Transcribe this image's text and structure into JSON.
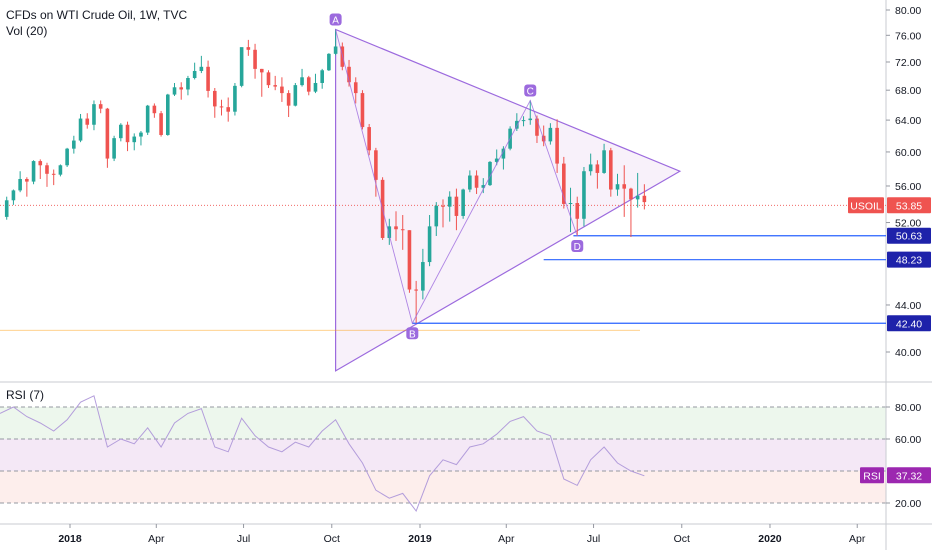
{
  "header": {
    "title": "CFDs on WTI Crude Oil, 1W, TVC",
    "volume_label": "Vol (20)"
  },
  "price_axis": {
    "ticks": [
      "80.00",
      "76.00",
      "72.00",
      "68.00",
      "64.00",
      "60.00",
      "56.00",
      "52.00",
      "44.00",
      "40.00"
    ]
  },
  "price_badges": {
    "symbol": "USOIL",
    "last": "53.85",
    "level_d1": "50.63",
    "level_d2": "48.23",
    "level_b": "42.40"
  },
  "pattern_labels": [
    "A",
    "B",
    "C",
    "D"
  ],
  "rsi": {
    "label": "RSI (7)",
    "badge_name": "RSI",
    "badge_value": "37.32",
    "ticks": [
      "80.00",
      "60.00",
      "20.00"
    ]
  },
  "time_axis": {
    "labels": [
      "2018",
      "Apr",
      "Jul",
      "Oct",
      "2019",
      "Apr",
      "Jul",
      "Oct",
      "2020",
      "Apr"
    ]
  },
  "colors": {
    "up": "#26a69a",
    "down": "#ef5350",
    "pattern": "#9c6ade",
    "level_line": "#2962ff",
    "rsi_line": "#b39ddb"
  },
  "chart_data": {
    "type": "candlestick",
    "title": "CFDs on WTI Crude Oil, 1W, TVC",
    "ylim": [
      38,
      82
    ],
    "x_range": [
      "2017-10-20",
      "2020-05-01"
    ],
    "candles": [
      [
        "2017-10-27",
        52.6,
        54.8,
        52.3,
        54.4
      ],
      [
        "2017-11-03",
        54.4,
        55.6,
        53.9,
        55.5
      ],
      [
        "2017-11-10",
        55.5,
        57.7,
        55.3,
        56.8
      ],
      [
        "2017-11-17",
        56.8,
        57.0,
        54.8,
        56.5
      ],
      [
        "2017-11-24",
        56.5,
        59.0,
        56.2,
        58.9
      ],
      [
        "2017-12-01",
        58.9,
        59.1,
        56.8,
        58.4
      ],
      [
        "2017-12-08",
        58.4,
        58.7,
        55.9,
        57.4
      ],
      [
        "2017-12-15",
        57.4,
        57.9,
        56.1,
        57.3
      ],
      [
        "2017-12-22",
        57.3,
        58.5,
        57.1,
        58.4
      ],
      [
        "2017-12-29",
        58.4,
        60.5,
        58.2,
        60.4
      ],
      [
        "2018-01-05",
        60.4,
        62.0,
        59.8,
        61.4
      ],
      [
        "2018-01-12",
        61.4,
        64.8,
        61.2,
        64.2
      ],
      [
        "2018-01-19",
        64.2,
        64.9,
        62.9,
        63.4
      ],
      [
        "2018-01-26",
        63.4,
        66.6,
        62.7,
        66.1
      ],
      [
        "2018-02-02",
        66.1,
        66.6,
        64.9,
        65.5
      ],
      [
        "2018-02-09",
        65.5,
        65.6,
        58.1,
        59.2
      ],
      [
        "2018-02-16",
        59.2,
        62.0,
        58.9,
        61.7
      ],
      [
        "2018-02-23",
        61.7,
        63.6,
        61.3,
        63.4
      ],
      [
        "2018-03-02",
        63.4,
        63.8,
        60.1,
        61.2
      ],
      [
        "2018-03-09",
        61.2,
        62.3,
        60.2,
        61.9
      ],
      [
        "2018-03-16",
        61.9,
        62.6,
        60.8,
        62.4
      ],
      [
        "2018-03-23",
        62.4,
        66.0,
        62.1,
        65.9
      ],
      [
        "2018-03-30",
        65.9,
        66.2,
        64.3,
        64.9
      ],
      [
        "2018-04-06",
        64.9,
        65.2,
        61.9,
        62.1
      ],
      [
        "2018-04-13",
        62.1,
        67.5,
        62.0,
        67.4
      ],
      [
        "2018-04-20",
        67.4,
        69.0,
        67.2,
        68.4
      ],
      [
        "2018-04-27",
        68.4,
        69.1,
        66.7,
        68.1
      ],
      [
        "2018-05-04",
        68.1,
        70.0,
        67.3,
        69.7
      ],
      [
        "2018-05-11",
        69.7,
        71.9,
        69.5,
        70.7
      ],
      [
        "2018-05-18",
        70.7,
        72.9,
        70.4,
        71.3
      ],
      [
        "2018-05-25",
        71.3,
        72.2,
        67.0,
        67.9
      ],
      [
        "2018-06-01",
        67.9,
        68.3,
        64.3,
        65.8
      ],
      [
        "2018-06-08",
        65.8,
        66.7,
        64.6,
        65.7
      ],
      [
        "2018-06-15",
        65.7,
        67.0,
        63.8,
        65.1
      ],
      [
        "2018-06-22",
        65.1,
        69.0,
        64.6,
        68.6
      ],
      [
        "2018-06-29",
        68.6,
        74.1,
        68.4,
        74.2
      ],
      [
        "2018-07-06",
        74.2,
        75.3,
        72.9,
        73.8
      ],
      [
        "2018-07-13",
        73.8,
        74.7,
        69.6,
        71.0
      ],
      [
        "2018-07-20",
        71.0,
        71.0,
        67.1,
        70.5
      ],
      [
        "2018-07-27",
        70.5,
        70.8,
        68.3,
        68.7
      ],
      [
        "2018-08-03",
        68.7,
        70.0,
        68.0,
        68.5
      ],
      [
        "2018-08-10",
        68.5,
        69.8,
        66.4,
        67.6
      ],
      [
        "2018-08-17",
        67.6,
        68.0,
        64.4,
        65.9
      ],
      [
        "2018-08-24",
        65.9,
        69.0,
        65.8,
        68.7
      ],
      [
        "2018-08-31",
        68.7,
        71.0,
        68.5,
        69.8
      ],
      [
        "2018-09-07",
        69.8,
        70.0,
        67.3,
        67.8
      ],
      [
        "2018-09-14",
        67.8,
        70.3,
        67.6,
        69.0
      ],
      [
        "2018-09-21",
        69.0,
        71.0,
        68.2,
        70.8
      ],
      [
        "2018-09-28",
        70.8,
        73.3,
        70.7,
        73.2
      ],
      [
        "2018-10-05",
        73.2,
        76.9,
        73.0,
        74.3
      ],
      [
        "2018-10-12",
        74.3,
        74.9,
        70.8,
        71.3
      ],
      [
        "2018-10-19",
        71.3,
        72.3,
        68.5,
        69.1
      ],
      [
        "2018-10-26",
        69.1,
        69.8,
        66.2,
        67.6
      ],
      [
        "2018-11-02",
        67.6,
        68.0,
        62.8,
        63.1
      ],
      [
        "2018-11-09",
        63.1,
        63.5,
        59.6,
        60.2
      ],
      [
        "2018-11-16",
        60.2,
        60.5,
        54.8,
        56.7
      ],
      [
        "2018-11-23",
        56.7,
        57.0,
        50.2,
        50.4
      ],
      [
        "2018-11-30",
        50.4,
        52.4,
        49.7,
        51.6
      ],
      [
        "2018-12-07",
        51.6,
        53.2,
        50.1,
        51.3
      ],
      [
        "2018-12-14",
        51.3,
        52.8,
        49.2,
        51.2
      ],
      [
        "2018-12-21",
        51.2,
        51.2,
        45.1,
        45.4
      ],
      [
        "2018-12-28",
        45.4,
        46.2,
        42.4,
        45.3
      ],
      [
        "2019-01-04",
        45.3,
        49.3,
        44.5,
        48.0
      ],
      [
        "2019-01-11",
        48.0,
        52.8,
        47.6,
        51.6
      ],
      [
        "2019-01-18",
        51.6,
        54.2,
        50.6,
        53.8
      ],
      [
        "2019-01-25",
        53.8,
        54.5,
        51.5,
        53.7
      ],
      [
        "2019-02-01",
        53.7,
        55.4,
        52.1,
        54.8
      ],
      [
        "2019-02-08",
        54.8,
        55.7,
        51.2,
        52.7
      ],
      [
        "2019-02-15",
        52.7,
        55.7,
        52.4,
        55.6
      ],
      [
        "2019-02-22",
        55.6,
        57.8,
        55.3,
        57.2
      ],
      [
        "2019-03-01",
        57.2,
        57.8,
        55.1,
        55.8
      ],
      [
        "2019-03-08",
        55.8,
        56.9,
        55.2,
        56.1
      ],
      [
        "2019-03-15",
        56.1,
        58.9,
        56.0,
        58.8
      ],
      [
        "2019-03-22",
        58.8,
        60.3,
        58.4,
        59.2
      ],
      [
        "2019-03-29",
        59.2,
        60.7,
        57.9,
        60.4
      ],
      [
        "2019-04-05",
        60.4,
        63.2,
        60.2,
        62.9
      ],
      [
        "2019-04-12",
        62.9,
        64.9,
        62.6,
        63.9
      ],
      [
        "2019-04-19",
        63.9,
        64.5,
        63.2,
        64.0
      ],
      [
        "2019-04-26",
        64.0,
        66.6,
        63.4,
        64.2
      ],
      [
        "2019-05-03",
        64.2,
        64.6,
        61.1,
        62.0
      ],
      [
        "2019-05-10",
        62.0,
        63.3,
        60.7,
        61.3
      ],
      [
        "2019-05-17",
        61.3,
        63.6,
        60.9,
        63.0
      ],
      [
        "2019-05-24",
        63.0,
        64.1,
        57.5,
        58.6
      ],
      [
        "2019-05-31",
        58.6,
        59.4,
        53.5,
        54.0
      ],
      [
        "2019-06-07",
        54.0,
        55.8,
        51.0,
        54.1
      ],
      [
        "2019-06-14",
        54.1,
        54.8,
        50.6,
        52.4
      ],
      [
        "2019-06-21",
        52.4,
        58.2,
        51.6,
        57.7
      ],
      [
        "2019-06-28",
        57.7,
        59.8,
        57.2,
        58.5
      ],
      [
        "2019-07-05",
        58.5,
        59.0,
        55.7,
        57.5
      ],
      [
        "2019-07-12",
        57.5,
        61.0,
        57.4,
        60.2
      ],
      [
        "2019-07-19",
        60.2,
        60.5,
        54.8,
        55.6
      ],
      [
        "2019-07-26",
        55.6,
        57.4,
        54.9,
        56.2
      ],
      [
        "2019-08-02",
        56.2,
        58.4,
        52.6,
        55.7
      ],
      [
        "2019-08-09",
        55.7,
        55.8,
        50.5,
        54.5
      ],
      [
        "2019-08-16",
        54.5,
        57.5,
        53.6,
        54.9
      ],
      [
        "2019-08-23",
        54.9,
        56.2,
        53.4,
        54.2
      ]
    ],
    "pattern_points": [
      {
        "label": "A",
        "x": "2018-10-05",
        "y": 76.9
      },
      {
        "label": "B",
        "x": "2018-12-24",
        "y": 42.4
      },
      {
        "label": "C",
        "x": "2019-04-26",
        "y": 66.6
      },
      {
        "label": "D",
        "x": "2019-06-14",
        "y": 50.6
      }
    ],
    "triangle": [
      [
        "2018-10-05",
        76.9
      ],
      [
        "2018-10-05",
        38.5
      ],
      [
        "2019-09-29",
        57.7
      ]
    ],
    "horizontal_levels": [
      {
        "label": "50.63",
        "y": 50.63,
        "from": "2019-06-10"
      },
      {
        "label": "48.23",
        "y": 48.23,
        "from": "2019-05-10"
      },
      {
        "label": "42.40",
        "y": 42.4,
        "from": "2018-12-24"
      }
    ],
    "last_price": 53.85,
    "rsi": {
      "name": "RSI (7)",
      "ylim": [
        10,
        95
      ],
      "levels": [
        80,
        60,
        40,
        20
      ],
      "points": [
        [
          "2017-10-20",
          76
        ],
        [
          "2017-11-03",
          80
        ],
        [
          "2017-11-17",
          74
        ],
        [
          "2017-12-01",
          70
        ],
        [
          "2017-12-15",
          65
        ],
        [
          "2017-12-29",
          72
        ],
        [
          "2018-01-12",
          83
        ],
        [
          "2018-01-26",
          87
        ],
        [
          "2018-02-09",
          55
        ],
        [
          "2018-02-23",
          60
        ],
        [
          "2018-03-09",
          57
        ],
        [
          "2018-03-23",
          67
        ],
        [
          "2018-04-06",
          55
        ],
        [
          "2018-04-20",
          70
        ],
        [
          "2018-05-04",
          76
        ],
        [
          "2018-05-18",
          79
        ],
        [
          "2018-06-01",
          55
        ],
        [
          "2018-06-15",
          52
        ],
        [
          "2018-06-29",
          73
        ],
        [
          "2018-07-13",
          62
        ],
        [
          "2018-07-27",
          55
        ],
        [
          "2018-08-10",
          52
        ],
        [
          "2018-08-24",
          58
        ],
        [
          "2018-09-07",
          55
        ],
        [
          "2018-09-21",
          65
        ],
        [
          "2018-10-05",
          72
        ],
        [
          "2018-10-19",
          57
        ],
        [
          "2018-11-02",
          45
        ],
        [
          "2018-11-16",
          28
        ],
        [
          "2018-11-30",
          23
        ],
        [
          "2018-12-14",
          26
        ],
        [
          "2018-12-28",
          15
        ],
        [
          "2019-01-11",
          37
        ],
        [
          "2019-01-25",
          47
        ],
        [
          "2019-02-08",
          44
        ],
        [
          "2019-02-22",
          55
        ],
        [
          "2019-03-08",
          57
        ],
        [
          "2019-03-22",
          63
        ],
        [
          "2019-04-05",
          71
        ],
        [
          "2019-04-19",
          74
        ],
        [
          "2019-05-03",
          65
        ],
        [
          "2019-05-17",
          62
        ],
        [
          "2019-05-31",
          35
        ],
        [
          "2019-06-14",
          31
        ],
        [
          "2019-06-28",
          47
        ],
        [
          "2019-07-12",
          55
        ],
        [
          "2019-07-26",
          45
        ],
        [
          "2019-08-09",
          40
        ],
        [
          "2019-08-23",
          37
        ]
      ],
      "last": 37.32
    }
  }
}
